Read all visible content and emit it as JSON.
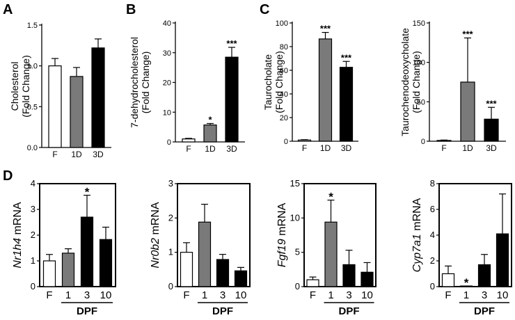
{
  "panel_letters": [
    "A",
    "B",
    "C",
    "D"
  ],
  "dpf_label": "DPF",
  "colors": {
    "F": "#ffffff",
    "1D": "#7a7a7a",
    "3D": "#000000",
    "1": "#7a7a7a",
    "3": "#000000",
    "10": "#000000",
    "stroke": "#000000"
  },
  "chart_data": [
    {
      "id": "A1",
      "type": "bar",
      "ylabel_lines": [
        "Cholesterol",
        "(Fold Change)"
      ],
      "ylim": [
        0,
        1.5
      ],
      "yticks": [
        "0.0",
        "0.5",
        "1.0",
        "1.5"
      ],
      "categories": [
        "F",
        "1D",
        "3D"
      ],
      "values": [
        1.0,
        0.87,
        1.22
      ],
      "errors": [
        0.09,
        0.11,
        0.11
      ],
      "stars": [
        "",
        "",
        ""
      ]
    },
    {
      "id": "B1",
      "type": "bar",
      "ylabel_lines": [
        "7-dehydrocholesterol",
        "(Fold Change)"
      ],
      "ylim": [
        0,
        40
      ],
      "yticks": [
        "0",
        "10",
        "20",
        "30",
        "40"
      ],
      "categories": [
        "F",
        "1D",
        "3D"
      ],
      "values": [
        1.0,
        5.7,
        28.5
      ],
      "errors": [
        0.2,
        0.5,
        3.3
      ],
      "stars": [
        "",
        "*",
        "***"
      ]
    },
    {
      "id": "C1",
      "type": "bar",
      "ylabel_lines": [
        "Taurocholate",
        "(Fold Change)"
      ],
      "ylim": [
        0,
        100
      ],
      "yticks": [
        "0",
        "20",
        "40",
        "60",
        "80",
        "100"
      ],
      "categories": [
        "F",
        "1D",
        "3D"
      ],
      "values": [
        1.0,
        86.5,
        62.5
      ],
      "errors": [
        0.3,
        5.5,
        5.0
      ],
      "stars": [
        "",
        "***",
        "***"
      ]
    },
    {
      "id": "C2",
      "type": "bar",
      "ylabel_lines": [
        "Taurochenodeoxycholate",
        "(Fold Change)"
      ],
      "ylim": [
        0,
        150
      ],
      "yticks": [
        "0",
        "50",
        "100",
        "150"
      ],
      "categories": [
        "F",
        "1D",
        "3D"
      ],
      "values": [
        1.0,
        75.0,
        28.0
      ],
      "errors": [
        0.5,
        56.0,
        15.0
      ],
      "stars": [
        "",
        "***",
        "***"
      ]
    },
    {
      "id": "D1",
      "type": "bar",
      "gene": "Nr1h4",
      "suffix": " mRNA",
      "ylim": [
        0,
        4
      ],
      "yticks": [
        "0",
        "1",
        "2",
        "3",
        "4"
      ],
      "categories": [
        "F",
        "1",
        "3",
        "10"
      ],
      "values": [
        1.0,
        1.3,
        2.7,
        1.83
      ],
      "errors": [
        0.25,
        0.17,
        0.85,
        0.48
      ],
      "stars": [
        "",
        "",
        "*",
        ""
      ]
    },
    {
      "id": "D2",
      "type": "bar",
      "gene": "Nr0b2",
      "suffix": " mRNA",
      "ylim": [
        0,
        3
      ],
      "yticks": [
        "0",
        "1",
        "2",
        "3"
      ],
      "categories": [
        "F",
        "1",
        "3",
        "10"
      ],
      "values": [
        1.0,
        1.88,
        0.79,
        0.46
      ],
      "errors": [
        0.28,
        0.52,
        0.15,
        0.1
      ],
      "stars": [
        "",
        "",
        "",
        ""
      ]
    },
    {
      "id": "D3",
      "type": "bar",
      "gene": "Fgf19",
      "suffix": " mRNA",
      "ylim": [
        0,
        15
      ],
      "yticks": [
        "0",
        "5",
        "10",
        "15"
      ],
      "categories": [
        "F",
        "1",
        "3",
        "10"
      ],
      "values": [
        1.0,
        9.4,
        3.2,
        2.1
      ],
      "errors": [
        0.4,
        3.2,
        2.1,
        1.4
      ],
      "stars": [
        "",
        "*",
        "",
        ""
      ]
    },
    {
      "id": "D4",
      "type": "bar",
      "gene": "Cyp7a1",
      "suffix": " mRNA",
      "ylim": [
        0,
        8
      ],
      "yticks": [
        "0",
        "2",
        "4",
        "6",
        "8"
      ],
      "categories": [
        "F",
        "1",
        "3",
        "10"
      ],
      "values": [
        1.0,
        0.05,
        1.7,
        4.1
      ],
      "errors": [
        0.6,
        0.0,
        0.8,
        3.1
      ],
      "stars": [
        "",
        "*",
        "",
        ""
      ]
    }
  ]
}
